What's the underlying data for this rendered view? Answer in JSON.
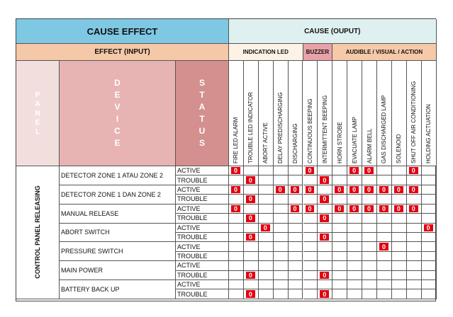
{
  "header": {
    "cause_effect": "CAUSE EFFECT",
    "cause_output": "CAUSE (OUPUT)",
    "effect_input": "EFFECT (INPUT)",
    "groups": [
      {
        "label": "INDICATION LED",
        "span": 5
      },
      {
        "label": "BUZZER",
        "span": 2
      },
      {
        "label": "AUDIBLE / VISUAL  / ACTION",
        "span": 7
      }
    ],
    "panel": "PANEL",
    "device": "DEVICE",
    "status": "STATUS"
  },
  "columns": [
    "FIRE LED ALARM",
    "TROUBLE LED INDICATOR",
    "ABORT ACTIVE",
    "DELAY PREDISCHARGING",
    "DISCHARGING",
    "CONTINUOUS BEEPING",
    "INTERMITTENT  BEEPING",
    "HORN STROBE",
    "EVACUATE LAMP",
    "ALARM BELL",
    "GAS DISCHARGED LAMP",
    "SOLENOID",
    "SHUT OFF  AIR CONDITIONING",
    "HOLDING ACTUATION"
  ],
  "panel_label": "CONTROL PANEL RELEASING",
  "devices": [
    {
      "name": "DETECTOR ZONE 1 ATAU ZONE 2",
      "rows": [
        {
          "status": "ACTIVE",
          "marks": [
            0,
            5,
            8,
            9,
            12
          ]
        },
        {
          "status": "TROUBLE",
          "marks": [
            1,
            6
          ]
        }
      ]
    },
    {
      "name": "DETECTOR ZONE 1 DAN ZONE 2",
      "rows": [
        {
          "status": "ACTIVE",
          "marks": [
            0,
            3,
            4,
            5,
            7,
            8,
            9,
            10,
            11,
            12
          ]
        },
        {
          "status": "TROUBLE",
          "marks": [
            1,
            6
          ]
        }
      ]
    },
    {
      "name": "MANUAL RELEASE",
      "rows": [
        {
          "status": "ACTIVE",
          "marks": [
            0,
            4,
            5,
            7,
            8,
            9,
            10,
            11,
            12
          ]
        },
        {
          "status": "TROUBLE",
          "marks": [
            1,
            6
          ]
        }
      ]
    },
    {
      "name": "ABORT SWITCH",
      "rows": [
        {
          "status": "ACTIVE",
          "marks": [
            2,
            13
          ]
        },
        {
          "status": "TROUBLE",
          "marks": [
            1,
            6
          ]
        }
      ]
    },
    {
      "name": "PRESSURE SWITCH",
      "rows": [
        {
          "status": "ACTIVE",
          "marks": [
            10
          ]
        },
        {
          "status": "TROUBLE",
          "marks": []
        }
      ]
    },
    {
      "name": "MAIN POWER",
      "rows": [
        {
          "status": "ACTIVE",
          "marks": []
        },
        {
          "status": "TROUBLE",
          "marks": [
            1,
            6
          ]
        }
      ]
    },
    {
      "name": "BATTERY BACK UP",
      "rows": [
        {
          "status": "ACTIVE",
          "marks": []
        },
        {
          "status": "TROUBLE",
          "marks": [
            1,
            6
          ]
        }
      ]
    }
  ],
  "mark_label": "0",
  "colors": {
    "mark": "#e3000f",
    "cause_effect_bg": "#7ec8e3",
    "effect_bg": "#f5c8a8",
    "buzzer_bg": "#e8a2a8",
    "status_bg": "#d48f8f"
  }
}
